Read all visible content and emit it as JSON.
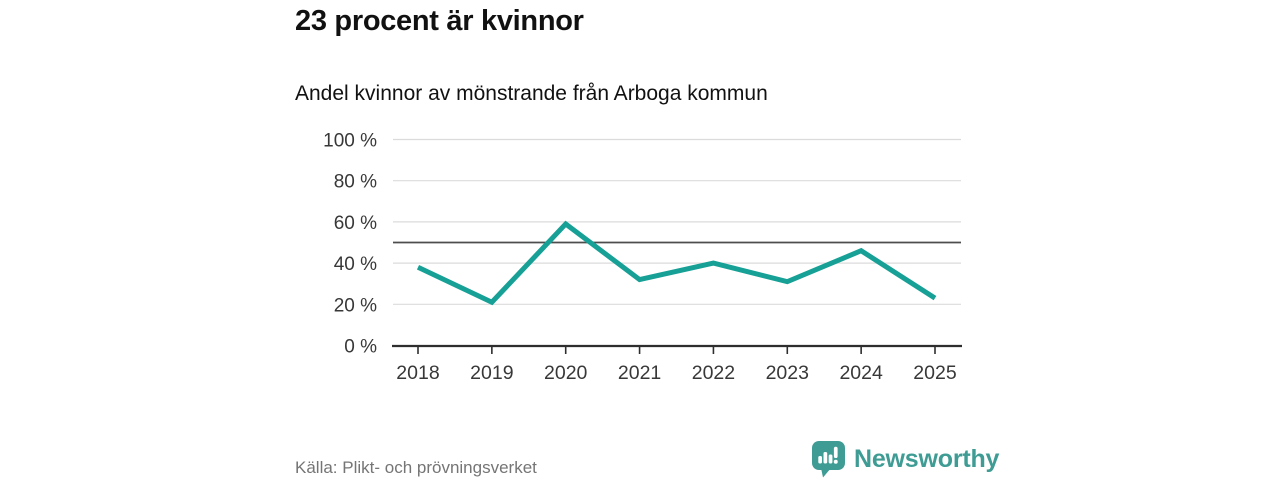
{
  "header": {
    "title": "23 procent är kvinnor",
    "subtitle": "Andel kvinnor av mönstrande från Arboga kommun"
  },
  "chart_data": {
    "type": "line",
    "title": "23 procent är kvinnor",
    "subtitle": "Andel kvinnor av mönstrande från Arboga kommun",
    "categories": [
      "2018",
      "2019",
      "2020",
      "2021",
      "2022",
      "2023",
      "2024",
      "2025"
    ],
    "values": [
      38,
      21,
      59,
      32,
      40,
      31,
      46,
      23
    ],
    "unit": "%",
    "ylim": [
      0,
      100
    ],
    "yticks": [
      0,
      20,
      40,
      60,
      80,
      100
    ],
    "ytick_suffix": " %",
    "reference_line": 50,
    "grid": true,
    "legend": "none",
    "line_color": "#16a096",
    "reference_line_color": "#4d4d4d",
    "gridline_color": "#dbdbdb",
    "axis_color": "#2e2e2e",
    "tick_label_color": "#383838"
  },
  "footer": {
    "source": "Källa: Plikt- och prövningsverket",
    "brand": "Newsworthy"
  },
  "colors": {
    "accent_teal": "#16a096",
    "brand_teal": "#3f9c94"
  }
}
